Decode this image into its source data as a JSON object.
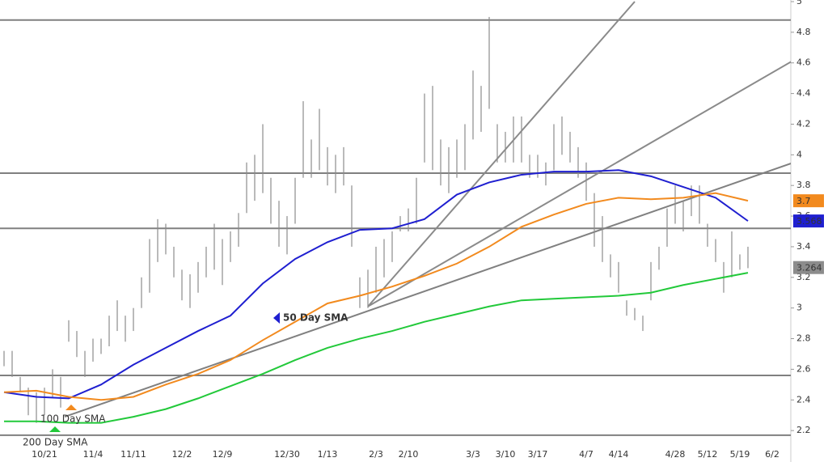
{
  "chart_data": {
    "type": "ohlc",
    "categories": [
      null,
      null,
      null,
      null,
      null,
      "10/21",
      null,
      null,
      null,
      null,
      null,
      "11/4",
      null,
      null,
      null,
      null,
      "11/11",
      null,
      null,
      null,
      null,
      null,
      "12/2",
      null,
      null,
      null,
      null,
      "12/9",
      null,
      null,
      null,
      null,
      null,
      null,
      null,
      "12/30",
      null,
      null,
      null,
      null,
      "1/13",
      null,
      null,
      null,
      null,
      null,
      "2/3",
      null,
      null,
      null,
      "2/10",
      null,
      null,
      null,
      null,
      null,
      null,
      null,
      "3/3",
      null,
      null,
      null,
      "3/10",
      null,
      null,
      null,
      "3/17",
      null,
      null,
      null,
      null,
      null,
      "4/7",
      null,
      null,
      null,
      "4/14",
      null,
      null,
      null,
      null,
      null,
      null,
      "4/28",
      null,
      null,
      null,
      "5/12",
      null,
      null,
      null,
      "5/19",
      null,
      null,
      null,
      "6/2",
      null,
      null
    ],
    "ylim": [
      2,
      5
    ],
    "yticks": [
      2.2,
      2.4,
      2.6,
      2.8,
      3,
      3.2,
      3.4,
      3.6,
      3.8,
      4,
      4.2,
      4.4,
      4.6,
      4.8,
      5
    ],
    "price": {
      "color": "#8c8c8c",
      "high": [
        2.72,
        2.72,
        2.55,
        2.48,
        2.45,
        2.48,
        2.6,
        2.55,
        2.92,
        2.85,
        2.72,
        2.8,
        2.8,
        2.95,
        3.05,
        2.95,
        3.0,
        3.2,
        3.45,
        3.58,
        3.55,
        3.4,
        3.25,
        3.22,
        3.3,
        3.4,
        3.55,
        3.45,
        3.5,
        3.62,
        3.95,
        4.0,
        4.2,
        3.85,
        3.7,
        3.6,
        3.85,
        4.35,
        4.1,
        4.3,
        4.05,
        4.0,
        4.05,
        3.8,
        3.2,
        3.25,
        3.4,
        3.45,
        3.5,
        3.6,
        3.65,
        3.85,
        4.4,
        4.45,
        4.1,
        4.05,
        4.1,
        4.2,
        4.55,
        4.45,
        4.9,
        4.2,
        4.15,
        4.25,
        4.25,
        4.0,
        4.0,
        3.95,
        4.2,
        4.25,
        4.15,
        4.05,
        3.95,
        3.75,
        3.6,
        3.35,
        3.3,
        3.05,
        3.0,
        2.95,
        3.3,
        3.4,
        3.65,
        3.8,
        3.7,
        3.8,
        3.8,
        3.55,
        3.45,
        3.3,
        3.5,
        3.35,
        3.4,
        null,
        null,
        null,
        null,
        null
      ],
      "low": [
        2.62,
        2.55,
        2.45,
        2.3,
        2.25,
        2.3,
        2.42,
        2.35,
        2.78,
        2.68,
        2.55,
        2.65,
        2.7,
        2.75,
        2.85,
        2.78,
        2.85,
        3.0,
        3.1,
        3.3,
        3.35,
        3.2,
        3.05,
        3.0,
        3.1,
        3.2,
        3.25,
        3.15,
        3.3,
        3.4,
        3.62,
        3.7,
        3.75,
        3.55,
        3.4,
        3.35,
        3.55,
        3.85,
        3.85,
        3.9,
        3.8,
        3.75,
        3.8,
        3.4,
        3.0,
        3.0,
        3.1,
        3.2,
        3.3,
        3.5,
        3.5,
        3.55,
        3.95,
        3.9,
        3.8,
        3.75,
        3.85,
        3.9,
        4.1,
        4.15,
        4.3,
        3.95,
        3.95,
        3.95,
        3.95,
        3.85,
        3.85,
        3.8,
        3.9,
        4.0,
        3.95,
        3.85,
        3.7,
        3.4,
        3.3,
        3.2,
        3.1,
        2.95,
        2.92,
        2.85,
        3.05,
        3.25,
        3.4,
        3.55,
        3.5,
        3.6,
        3.55,
        3.4,
        3.3,
        3.1,
        3.2,
        3.25,
        3.26,
        null,
        null,
        null,
        null,
        null
      ],
      "last": 3.264
    },
    "series": [
      {
        "name": "50 Day SMA",
        "color": "#1f1fd0",
        "x": [
          0,
          4,
          8,
          12,
          16,
          20,
          24,
          28,
          32,
          36,
          40,
          44,
          48,
          52,
          56,
          60,
          64,
          68,
          72,
          76,
          80,
          84,
          88,
          92
        ],
        "values": [
          2.45,
          2.42,
          2.41,
          2.5,
          2.63,
          2.74,
          2.85,
          2.95,
          3.16,
          3.32,
          3.43,
          3.51,
          3.52,
          3.58,
          3.74,
          3.82,
          3.87,
          3.89,
          3.89,
          3.9,
          3.86,
          3.79,
          3.72,
          3.568
        ]
      },
      {
        "name": "100 Day SMA",
        "color": "#f28a1e",
        "x": [
          0,
          4,
          8,
          12,
          16,
          20,
          24,
          28,
          32,
          36,
          40,
          44,
          48,
          52,
          56,
          60,
          64,
          68,
          72,
          76,
          80,
          84,
          88,
          92
        ],
        "values": [
          2.45,
          2.46,
          2.42,
          2.4,
          2.42,
          2.5,
          2.57,
          2.66,
          2.79,
          2.91,
          3.03,
          3.08,
          3.14,
          3.21,
          3.29,
          3.4,
          3.53,
          3.61,
          3.68,
          3.72,
          3.71,
          3.72,
          3.75,
          3.7
        ]
      },
      {
        "name": "200 Day SMA",
        "color": "#22c93a",
        "x": [
          0,
          4,
          8,
          12,
          16,
          20,
          24,
          28,
          32,
          36,
          40,
          44,
          48,
          52,
          56,
          60,
          64,
          68,
          72,
          76,
          80,
          84,
          88,
          92
        ],
        "values": [
          2.26,
          2.26,
          2.25,
          2.25,
          2.29,
          2.34,
          2.41,
          2.49,
          2.57,
          2.66,
          2.74,
          2.8,
          2.85,
          2.91,
          2.96,
          3.01,
          3.05,
          3.06,
          3.07,
          3.08,
          3.1,
          3.15,
          3.19,
          3.23
        ]
      }
    ],
    "levels": {
      "color": "#808080",
      "values": [
        4.88,
        3.88,
        3.52,
        2.56,
        2.17
      ]
    },
    "trendlines": [
      {
        "color": "#8a8a8a",
        "x": [
          45,
          78
        ],
        "values": [
          3.01,
          5.0
        ]
      },
      {
        "color": "#8a8a8a",
        "x": [
          45,
          102
        ],
        "values": [
          3.01,
          4.75
        ]
      },
      {
        "color": "#808080",
        "x": [
          7.5,
          102
        ],
        "values": [
          2.29,
          4.03
        ]
      }
    ]
  }
}
